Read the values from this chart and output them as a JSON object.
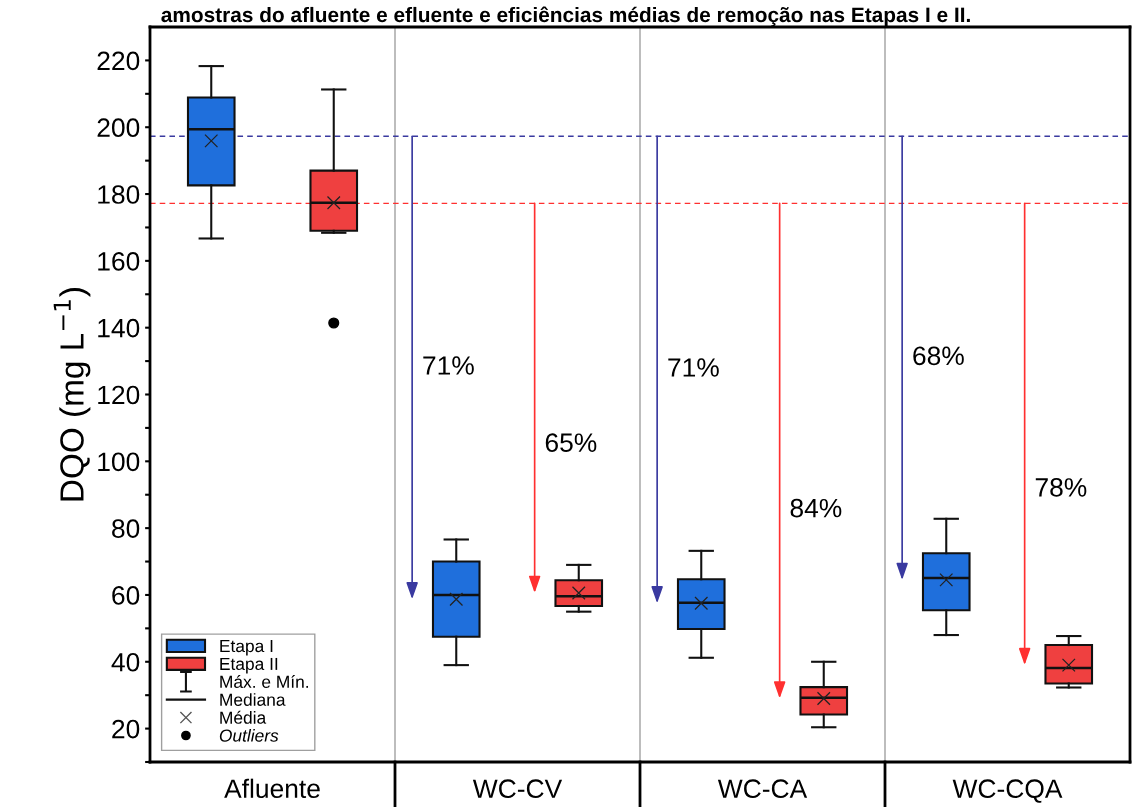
{
  "chart_data": {
    "type": "box",
    "title": "amostras do afluente e efluente e eficiências médias de remoção nas Etapas I e II.",
    "ylabel": "DQO (mg L$^{−1}$)",
    "categories": [
      "Afluente",
      "WC-CV",
      "WC-CA",
      "WC-CQA"
    ],
    "series": [
      {
        "name": "Etapa I",
        "color": "#1f6fdc",
        "boxes": [
          {
            "low": 166.7,
            "q1": 182.6,
            "median": 199.4,
            "q3": 208.9,
            "high": 218.3,
            "mean": 195.9
          },
          {
            "low": 39,
            "q1": 47.5,
            "median": 60,
            "q3": 70,
            "high": 76.6,
            "mean": 58.7
          },
          {
            "low": 41.2,
            "q1": 49.8,
            "median": 57.7,
            "q3": 64.7,
            "high": 73.2,
            "mean": 57.5
          },
          {
            "low": 48,
            "q1": 55.4,
            "median": 65.1,
            "q3": 72.5,
            "high": 82.8,
            "mean": 64.5
          }
        ]
      },
      {
        "name": "Etapa II",
        "color": "#ef4040",
        "boxes": [
          {
            "low": 168.4,
            "q1": 169,
            "median": 177.4,
            "q3": 187,
            "high": 211.3,
            "mean": 177.4,
            "outliers": [
              141.4
            ]
          },
          {
            "low": 55,
            "q1": 56.7,
            "median": 59.6,
            "q3": 64.4,
            "high": 69,
            "mean": 60.6
          },
          {
            "low": 20.4,
            "q1": 24.2,
            "median": 29.2,
            "q3": 32.4,
            "high": 40,
            "mean": 29
          },
          {
            "low": 32.3,
            "q1": 33.5,
            "median": 38.1,
            "q3": 45,
            "high": 47.7,
            "mean": 39
          }
        ]
      }
    ],
    "ref_lines": [
      {
        "axis": "y",
        "value": 197.3,
        "color": "#3a3aa0",
        "line_style": "dashed"
      },
      {
        "axis": "y",
        "value": 177.2,
        "color": "#ff3030",
        "line_style": "dashed"
      }
    ],
    "annotations": [
      "71%",
      "65%",
      "71%",
      "84%",
      "68%",
      "78%",
      "Máx. e Mín.",
      "Mediana",
      "Média",
      "Outliers"
    ],
    "ylim": [
      10,
      230
    ],
    "yticks": [
      {
        "value": 10,
        "label": null
      },
      20,
      {
        "value": 30,
        "label": null
      },
      40,
      {
        "value": 50,
        "label": null
      },
      60,
      {
        "value": 70,
        "label": null
      },
      80,
      {
        "value": 90,
        "label": null
      },
      100,
      {
        "value": 110,
        "label": null
      },
      120,
      {
        "value": 130,
        "label": null
      },
      140,
      {
        "value": 150,
        "label": null
      },
      160,
      {
        "value": 170,
        "label": null
      },
      180,
      {
        "value": 190,
        "label": null
      },
      200,
      {
        "value": 210,
        "label": null
      },
      220
    ],
    "legend": "bottom left",
    "grid": false
  }
}
